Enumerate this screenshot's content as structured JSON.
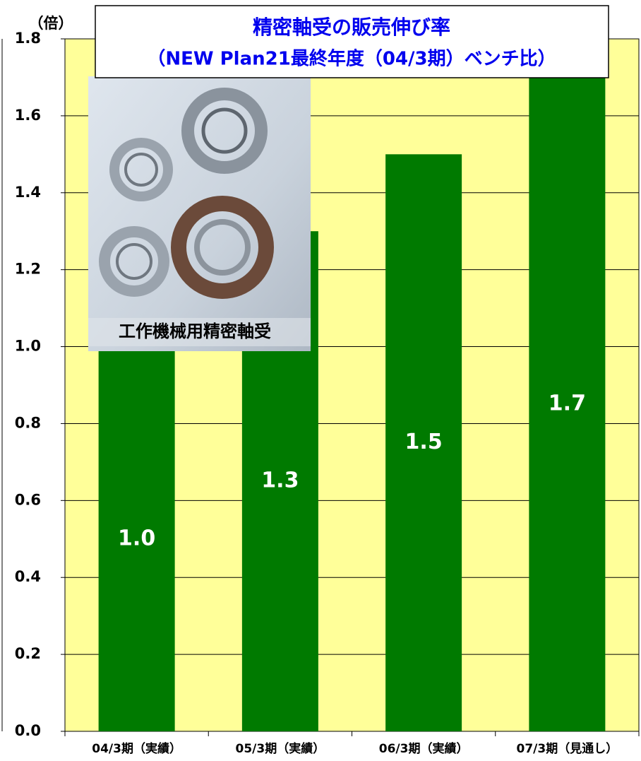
{
  "chart_data": {
    "type": "bar",
    "title": "精密軸受の販売伸び率",
    "subtitle": "（NEW Plan21最終年度（04/3期）ベンチ比）",
    "ylabel": "（倍）",
    "annotation": "工作機械用精密軸受",
    "categories": [
      "04/3期（実績）",
      "05/3期（実績）",
      "06/3期（実績）",
      "07/3期（見通し）"
    ],
    "values": [
      1.0,
      1.3,
      1.5,
      1.7
    ],
    "value_labels": [
      "1.0",
      "1.3",
      "1.5",
      "1.7"
    ],
    "color": "#007a00",
    "ylim": [
      0,
      1.8
    ],
    "yticks": [
      {
        "value": 0,
        "label": "0.0"
      },
      0.2,
      0.4,
      0.6,
      0.8,
      {
        "value": 1,
        "label": "1.0"
      },
      1.2,
      1.4,
      1.6,
      {
        "value": 1.8,
        "label": "1.8"
      }
    ],
    "grid": true
  }
}
